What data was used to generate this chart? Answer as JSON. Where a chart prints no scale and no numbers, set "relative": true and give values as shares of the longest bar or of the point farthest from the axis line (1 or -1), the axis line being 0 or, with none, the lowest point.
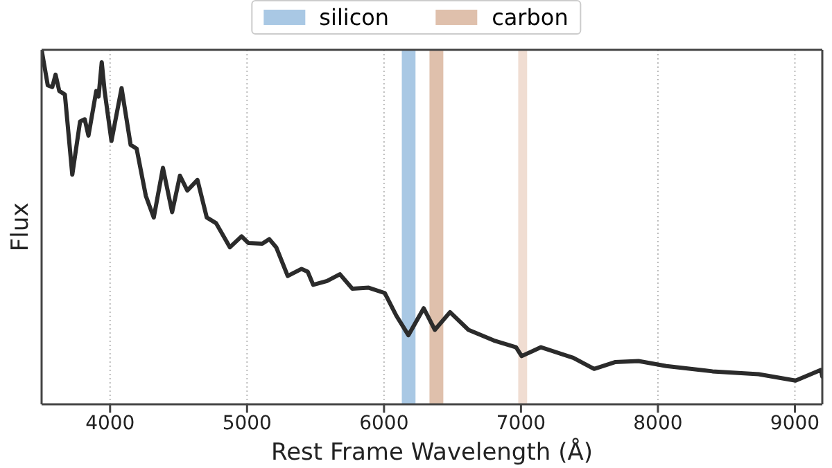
{
  "chart_data": {
    "type": "line",
    "xlabel": "Rest Frame Wavelength (Å)",
    "ylabel": "Flux",
    "relative": true,
    "x": [
      3500,
      3545,
      3578,
      3602,
      3629,
      3670,
      3724,
      3781,
      3815,
      3842,
      3899,
      3916,
      3939,
      3960,
      4010,
      4084,
      4150,
      4194,
      4261,
      4319,
      4386,
      4453,
      4510,
      4564,
      4638,
      4706,
      4774,
      4875,
      4960,
      5010,
      5111,
      5162,
      5213,
      5297,
      5398,
      5443,
      5483,
      5584,
      5678,
      5769,
      5888,
      6005,
      6090,
      6178,
      6290,
      6371,
      6482,
      6617,
      6802,
      6964,
      7005,
      7146,
      7382,
      7534,
      7686,
      7858,
      8061,
      8398,
      8735,
      9005,
      9191,
      9200
    ],
    "series": [
      {
        "color": "#2b2b2b",
        "values": [
          1.0,
          0.9,
          0.895,
          0.93,
          0.884,
          0.874,
          0.648,
          0.798,
          0.804,
          0.758,
          0.884,
          0.868,
          0.965,
          0.884,
          0.743,
          0.892,
          0.732,
          0.721,
          0.588,
          0.527,
          0.667,
          0.542,
          0.645,
          0.603,
          0.633,
          0.527,
          0.511,
          0.443,
          0.474,
          0.455,
          0.453,
          0.466,
          0.443,
          0.362,
          0.382,
          0.374,
          0.337,
          0.348,
          0.367,
          0.326,
          0.329,
          0.314,
          0.25,
          0.195,
          0.271,
          0.21,
          0.26,
          0.21,
          0.18,
          0.161,
          0.136,
          0.161,
          0.131,
          0.1,
          0.119,
          0.122,
          0.108,
          0.093,
          0.085,
          0.067,
          0.097,
          0.078
        ]
      }
    ],
    "xlim": [
      3500,
      9200
    ],
    "xticks": [
      4000,
      5000,
      6000,
      7000,
      8000,
      9000
    ],
    "bands": [
      {
        "axis": "x",
        "from": 6130,
        "to": 6230,
        "label": "silicon",
        "color": "#a9c8e4"
      },
      {
        "axis": "x",
        "from": 6332,
        "to": 6433,
        "label": "carbon",
        "color": "#dfc0ac"
      },
      {
        "axis": "x",
        "from": 6980,
        "to": 7045,
        "color": "#f0ddd2"
      }
    ],
    "grid": "x",
    "legend": "top",
    "tick_labels": "x",
    "line_style": "solid",
    "marker": "none"
  }
}
